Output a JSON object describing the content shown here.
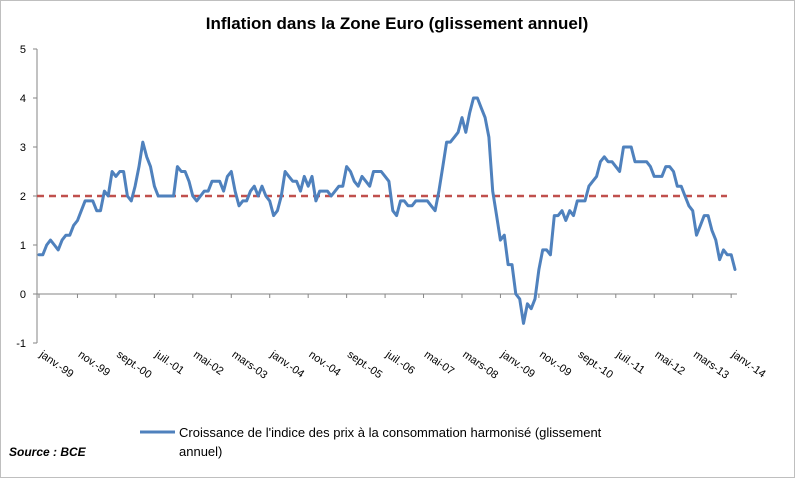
{
  "chart_data": {
    "type": "line",
    "title": "Inflation dans la Zone Euro (glissement annuel)",
    "xlabel": "",
    "ylabel": "",
    "ylim": [
      -1,
      5
    ],
    "y_ticks": [
      "5",
      "4",
      "3",
      "2",
      "1",
      "0",
      "-1"
    ],
    "x_tick_labels": [
      "janv.-99",
      "nov.-99",
      "sept.-00",
      "juil.-01",
      "mai-02",
      "mars-03",
      "janv.-04",
      "nov.-04",
      "sept.-05",
      "juil.-06",
      "mai-07",
      "mars-08",
      "janv.-09",
      "nov.-09",
      "sept.-10",
      "juil.-11",
      "mai-12",
      "mars-13",
      "janv.-14"
    ],
    "x_start": "1999-01",
    "x_end": "2014-01",
    "grid": false,
    "legend_position": "bottom",
    "reference_line": {
      "value": 2,
      "color": "#c0504d",
      "style": "dashed"
    },
    "series": [
      {
        "name": "Croissance de l'indice des prix à la consommation harmonisé (glissement annuel)",
        "color": "#4f81bd",
        "values": [
          0.8,
          0.8,
          1.0,
          1.1,
          1.0,
          0.9,
          1.1,
          1.2,
          1.2,
          1.4,
          1.5,
          1.7,
          1.9,
          1.9,
          1.9,
          1.7,
          1.7,
          2.1,
          2.0,
          2.5,
          2.4,
          2.5,
          2.5,
          2.0,
          1.9,
          2.2,
          2.6,
          3.1,
          2.8,
          2.6,
          2.2,
          2.0,
          2.0,
          2.0,
          2.0,
          2.0,
          2.6,
          2.5,
          2.5,
          2.3,
          2.0,
          1.9,
          2.0,
          2.1,
          2.1,
          2.3,
          2.3,
          2.3,
          2.1,
          2.4,
          2.5,
          2.1,
          1.8,
          1.9,
          1.9,
          2.1,
          2.2,
          2.0,
          2.2,
          2.0,
          1.9,
          1.6,
          1.7,
          2.0,
          2.5,
          2.4,
          2.3,
          2.3,
          2.1,
          2.4,
          2.2,
          2.4,
          1.9,
          2.1,
          2.1,
          2.1,
          2.0,
          2.1,
          2.2,
          2.2,
          2.6,
          2.5,
          2.3,
          2.2,
          2.4,
          2.3,
          2.2,
          2.5,
          2.5,
          2.5,
          2.4,
          2.3,
          1.7,
          1.6,
          1.9,
          1.9,
          1.8,
          1.8,
          1.9,
          1.9,
          1.9,
          1.9,
          1.8,
          1.7,
          2.1,
          2.6,
          3.1,
          3.1,
          3.2,
          3.3,
          3.6,
          3.3,
          3.7,
          4.0,
          4.0,
          3.8,
          3.6,
          3.2,
          2.1,
          1.6,
          1.1,
          1.2,
          0.6,
          0.6,
          0.0,
          -0.1,
          -0.6,
          -0.2,
          -0.3,
          -0.1,
          0.5,
          0.9,
          0.9,
          0.8,
          1.6,
          1.6,
          1.7,
          1.5,
          1.7,
          1.6,
          1.9,
          1.9,
          1.9,
          2.2,
          2.3,
          2.4,
          2.7,
          2.8,
          2.7,
          2.7,
          2.6,
          2.5,
          3.0,
          3.0,
          3.0,
          2.7,
          2.7,
          2.7,
          2.7,
          2.6,
          2.4,
          2.4,
          2.4,
          2.6,
          2.6,
          2.5,
          2.2,
          2.2,
          2.0,
          1.8,
          1.7,
          1.2,
          1.4,
          1.6,
          1.6,
          1.3,
          1.1,
          0.7,
          0.9,
          0.8,
          0.8,
          0.5
        ]
      }
    ],
    "source_note": "Source : BCE"
  }
}
